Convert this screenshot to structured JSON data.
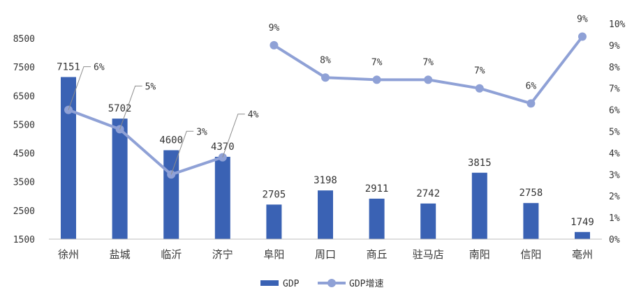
{
  "chart_data": {
    "type": "bar",
    "categories": [
      "徐州",
      "盐城",
      "临沂",
      "济宁",
      "阜阳",
      "周口",
      "商丘",
      "驻马店",
      "南阳",
      "信阳",
      "亳州"
    ],
    "series": [
      {
        "name": "GDP",
        "type": "bar",
        "axis": "left",
        "color": "#3a62b4",
        "values": [
          7151,
          5702,
          4600,
          4370,
          2705,
          3198,
          2911,
          2742,
          3815,
          2758,
          1749
        ],
        "labels": [
          "7151",
          "5702",
          "4600",
          "4370",
          "2705",
          "3198",
          "2911",
          "2742",
          "3815",
          "2758",
          "1749"
        ]
      },
      {
        "name": "GDP增速",
        "type": "line",
        "axis": "right",
        "color": "#8fa1d6",
        "values": [
          6.0,
          5.1,
          3.0,
          3.8,
          9.0,
          7.5,
          7.4,
          7.4,
          7.0,
          6.3,
          9.4
        ],
        "labels": [
          "6%",
          "5%",
          "3%",
          "4%",
          "9%",
          "8%",
          "7%",
          "7%",
          "7%",
          "6%",
          "9%"
        ]
      }
    ],
    "y_left": {
      "range": [
        1500,
        8500
      ],
      "ticks": [
        1500,
        2500,
        3500,
        4500,
        5500,
        6500,
        7500,
        8500
      ],
      "tick_labels": [
        "1500",
        "2500",
        "3500",
        "4500",
        "5500",
        "6500",
        "7500",
        "8500"
      ]
    },
    "y_right": {
      "range": [
        0,
        10
      ],
      "ticks": [
        0,
        1,
        2,
        3,
        4,
        5,
        6,
        7,
        8,
        9,
        10
      ],
      "tick_labels": [
        "0%",
        "1%",
        "2%",
        "3%",
        "4%",
        "5%",
        "6%",
        "7%",
        "8%",
        "9%",
        "10%"
      ]
    },
    "grid": false,
    "legend_position": "bottom-center",
    "legend": [
      "GDP",
      "GDP增速"
    ]
  }
}
